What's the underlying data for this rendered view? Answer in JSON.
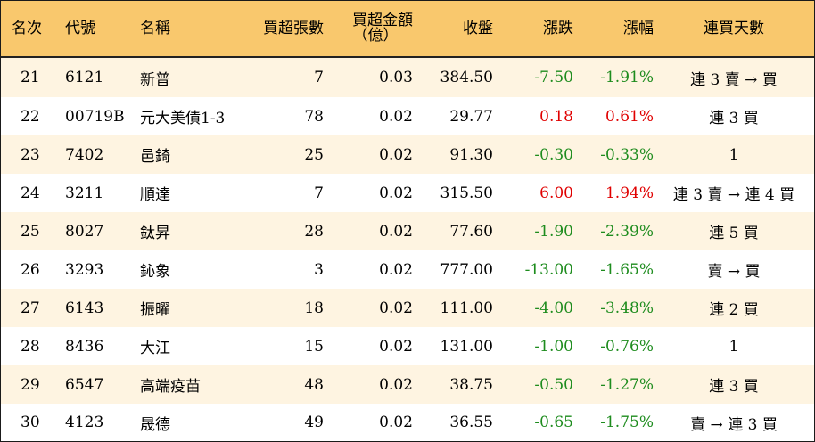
{
  "headers": {
    "rank": "名次",
    "code": "代號",
    "name": "名稱",
    "net_lots": "買超張數",
    "net_amount_l1": "買超金額",
    "net_amount_l2": "（億）",
    "close": "收盤",
    "change": "漲跌",
    "pct": "漲幅",
    "streak": "連買天數"
  },
  "colors": {
    "header_bg": "#f9c86d",
    "odd_row_bg": "#fef4e1",
    "up": "#e00000",
    "down": "#1e8c1e"
  },
  "rows": [
    {
      "rank": "21",
      "code": "6121",
      "name": "新普",
      "lots": "7",
      "amount": "0.03",
      "close": "384.50",
      "change": "-7.50",
      "pct": "-1.91%",
      "streak": "連 3 賣 → 買",
      "direction": "down"
    },
    {
      "rank": "22",
      "code": "00719B",
      "name": "元大美債1-3",
      "lots": "78",
      "amount": "0.02",
      "close": "29.77",
      "change": "0.18",
      "pct": "0.61%",
      "streak": "連 3 買",
      "direction": "up"
    },
    {
      "rank": "23",
      "code": "7402",
      "name": "邑錡",
      "lots": "25",
      "amount": "0.02",
      "close": "91.30",
      "change": "-0.30",
      "pct": "-0.33%",
      "streak": "1",
      "direction": "down"
    },
    {
      "rank": "24",
      "code": "3211",
      "name": "順達",
      "lots": "7",
      "amount": "0.02",
      "close": "315.50",
      "change": "6.00",
      "pct": "1.94%",
      "streak": "連 3 賣 → 連 4 買",
      "direction": "up"
    },
    {
      "rank": "25",
      "code": "8027",
      "name": "鈦昇",
      "lots": "28",
      "amount": "0.02",
      "close": "77.60",
      "change": "-1.90",
      "pct": "-2.39%",
      "streak": "連 5 買",
      "direction": "down"
    },
    {
      "rank": "26",
      "code": "3293",
      "name": "鈊象",
      "lots": "3",
      "amount": "0.02",
      "close": "777.00",
      "change": "-13.00",
      "pct": "-1.65%",
      "streak": "賣 → 買",
      "direction": "down"
    },
    {
      "rank": "27",
      "code": "6143",
      "name": "振曜",
      "lots": "18",
      "amount": "0.02",
      "close": "111.00",
      "change": "-4.00",
      "pct": "-3.48%",
      "streak": "連 2 買",
      "direction": "down"
    },
    {
      "rank": "28",
      "code": "8436",
      "name": "大江",
      "lots": "15",
      "amount": "0.02",
      "close": "131.00",
      "change": "-1.00",
      "pct": "-0.76%",
      "streak": "1",
      "direction": "down"
    },
    {
      "rank": "29",
      "code": "6547",
      "name": "高端疫苗",
      "lots": "48",
      "amount": "0.02",
      "close": "38.75",
      "change": "-0.50",
      "pct": "-1.27%",
      "streak": "連 3 買",
      "direction": "down"
    },
    {
      "rank": "30",
      "code": "4123",
      "name": "晟德",
      "lots": "49",
      "amount": "0.02",
      "close": "36.55",
      "change": "-0.65",
      "pct": "-1.75%",
      "streak": "賣 → 連 3 買",
      "direction": "down"
    }
  ]
}
